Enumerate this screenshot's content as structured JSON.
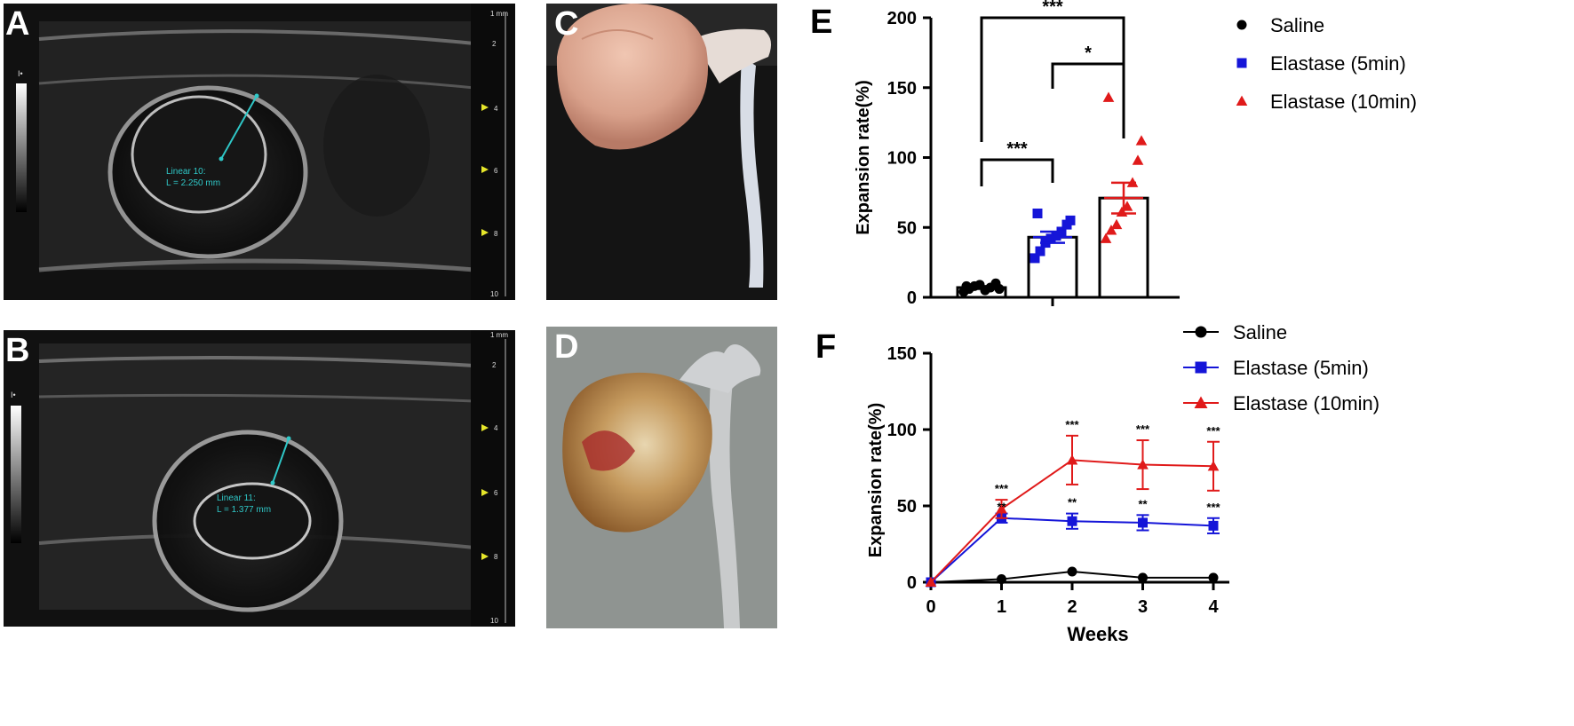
{
  "panels": {
    "A": {
      "letter": "A",
      "measurement": [
        "Linear 10:",
        "L = 2.250 mm"
      ],
      "depth_scale": {
        "unit_label": "1 mm",
        "ticks": [
          "2",
          "4",
          "6",
          "8",
          "10"
        ]
      }
    },
    "B": {
      "letter": "B",
      "measurement": [
        "Linear 11:",
        "L = 1.377 mm"
      ],
      "depth_scale": {
        "unit_label": "1 mm",
        "ticks": [
          "2",
          "4",
          "6",
          "8",
          "10"
        ]
      }
    },
    "C": {
      "letter": "C"
    },
    "D": {
      "letter": "D"
    }
  },
  "colors": {
    "saline": "#000000",
    "elastase_5": "#1515d8",
    "elastase_10": "#e01a1a",
    "measure_line": "#2fc7c7",
    "depth_marker": "#e6e62a"
  },
  "chart_data": [
    {
      "panel": "E",
      "type": "bar",
      "categories": [
        "Saline",
        "Elastase (5min)",
        "Elastase (10min)"
      ],
      "values": [
        7,
        43,
        71
      ],
      "errors": [
        1,
        4,
        11
      ],
      "points": [
        [
          4,
          6,
          8,
          9,
          5,
          7,
          10,
          6,
          8
        ],
        [
          28,
          33,
          39,
          42,
          44,
          47,
          52,
          55,
          60
        ],
        [
          42,
          48,
          52,
          61,
          65,
          82,
          98,
          112,
          143
        ]
      ],
      "ylabel": "Expansion rate(%)",
      "ylim": [
        0,
        200
      ],
      "yticks": [
        "0",
        "50",
        "100",
        "150",
        "200"
      ],
      "legend": [
        "Saline",
        "Elastase (5min)",
        "Elastase (10min)"
      ],
      "legend_markers": [
        "circle",
        "square",
        "triangle"
      ],
      "significance": [
        {
          "from": 0,
          "to": 2,
          "label": "***"
        },
        {
          "from": 1,
          "to": 2,
          "label": "*"
        },
        {
          "from": 0,
          "to": 1,
          "label": "***"
        }
      ]
    },
    {
      "panel": "F",
      "type": "line",
      "x": [
        0,
        1,
        2,
        3,
        4
      ],
      "xticks": [
        "0",
        "1",
        "2",
        "3",
        "4"
      ],
      "xlabel": "Weeks",
      "ylabel": "Expansion rate(%)",
      "ylim": [
        0,
        150
      ],
      "yticks": [
        "0",
        "50",
        "100",
        "150"
      ],
      "series": [
        {
          "name": "Saline",
          "marker": "circle",
          "values": [
            0,
            2,
            7,
            3,
            3
          ],
          "errors": [
            0,
            0,
            0,
            0,
            0
          ]
        },
        {
          "name": "Elastase (5min)",
          "marker": "square",
          "values": [
            0,
            42,
            40,
            39,
            37
          ],
          "errors": [
            0,
            3,
            5,
            5,
            5
          ]
        },
        {
          "name": "Elastase (10min)",
          "marker": "triangle",
          "values": [
            0,
            48,
            80,
            77,
            76
          ],
          "errors": [
            0,
            6,
            16,
            16,
            16
          ]
        }
      ],
      "annotations_upper": [
        "",
        "***",
        "***",
        "***",
        "***"
      ],
      "annotations_lower": [
        "",
        "**",
        "**",
        "**",
        "***"
      ]
    }
  ]
}
